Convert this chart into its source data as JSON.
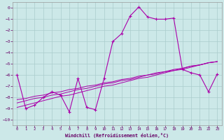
{
  "xlabel": "Windchill (Refroidissement éolien,°C)",
  "bg_color": "#cce8e8",
  "grid_color": "#aacccc",
  "line_color": "#aa00aa",
  "text_color": "#660066",
  "x_data": [
    0,
    1,
    2,
    3,
    4,
    5,
    6,
    7,
    8,
    9,
    10,
    11,
    12,
    13,
    14,
    15,
    16,
    17,
    18,
    19,
    20,
    21,
    22,
    23
  ],
  "y_main": [
    -6,
    -9.0,
    -8.7,
    -8.0,
    -7.5,
    -7.8,
    -9.3,
    -6.3,
    -8.9,
    -9.1,
    -6.3,
    -3.0,
    -2.3,
    -0.7,
    0.1,
    -0.8,
    -1.0,
    -1.0,
    -0.9,
    -5.5,
    -5.8,
    -6.0,
    -7.5,
    -5.9
  ],
  "y_line1": [
    -8.2,
    -8.1,
    -7.9,
    -7.8,
    -7.6,
    -7.5,
    -7.3,
    -7.2,
    -7.0,
    -6.9,
    -6.7,
    -6.6,
    -6.4,
    -6.3,
    -6.1,
    -6.0,
    -5.8,
    -5.7,
    -5.5,
    -5.4,
    -5.2,
    -5.1,
    -4.9,
    -4.8
  ],
  "y_line2": [
    -8.5,
    -8.3,
    -8.1,
    -8.0,
    -7.8,
    -7.7,
    -7.5,
    -7.3,
    -7.2,
    -7.0,
    -6.8,
    -6.7,
    -6.5,
    -6.4,
    -6.2,
    -6.0,
    -5.9,
    -5.7,
    -5.6,
    -5.4,
    -5.2,
    -5.1,
    -4.9,
    -4.8
  ],
  "y_line3": [
    -8.9,
    -8.7,
    -8.5,
    -8.3,
    -8.1,
    -7.9,
    -7.8,
    -7.6,
    -7.4,
    -7.2,
    -7.0,
    -6.9,
    -6.7,
    -6.5,
    -6.3,
    -6.2,
    -6.0,
    -5.8,
    -5.6,
    -5.5,
    -5.3,
    -5.1,
    -4.9,
    -4.8
  ],
  "ylim": [
    -10.5,
    0.5
  ],
  "xlim": [
    -0.5,
    23.5
  ],
  "yticks": [
    0,
    -1,
    -2,
    -3,
    -4,
    -5,
    -6,
    -7,
    -8,
    -9,
    -10
  ],
  "xticks": [
    0,
    1,
    2,
    3,
    4,
    5,
    6,
    7,
    8,
    9,
    10,
    11,
    12,
    13,
    14,
    15,
    16,
    17,
    18,
    19,
    20,
    21,
    22,
    23
  ]
}
